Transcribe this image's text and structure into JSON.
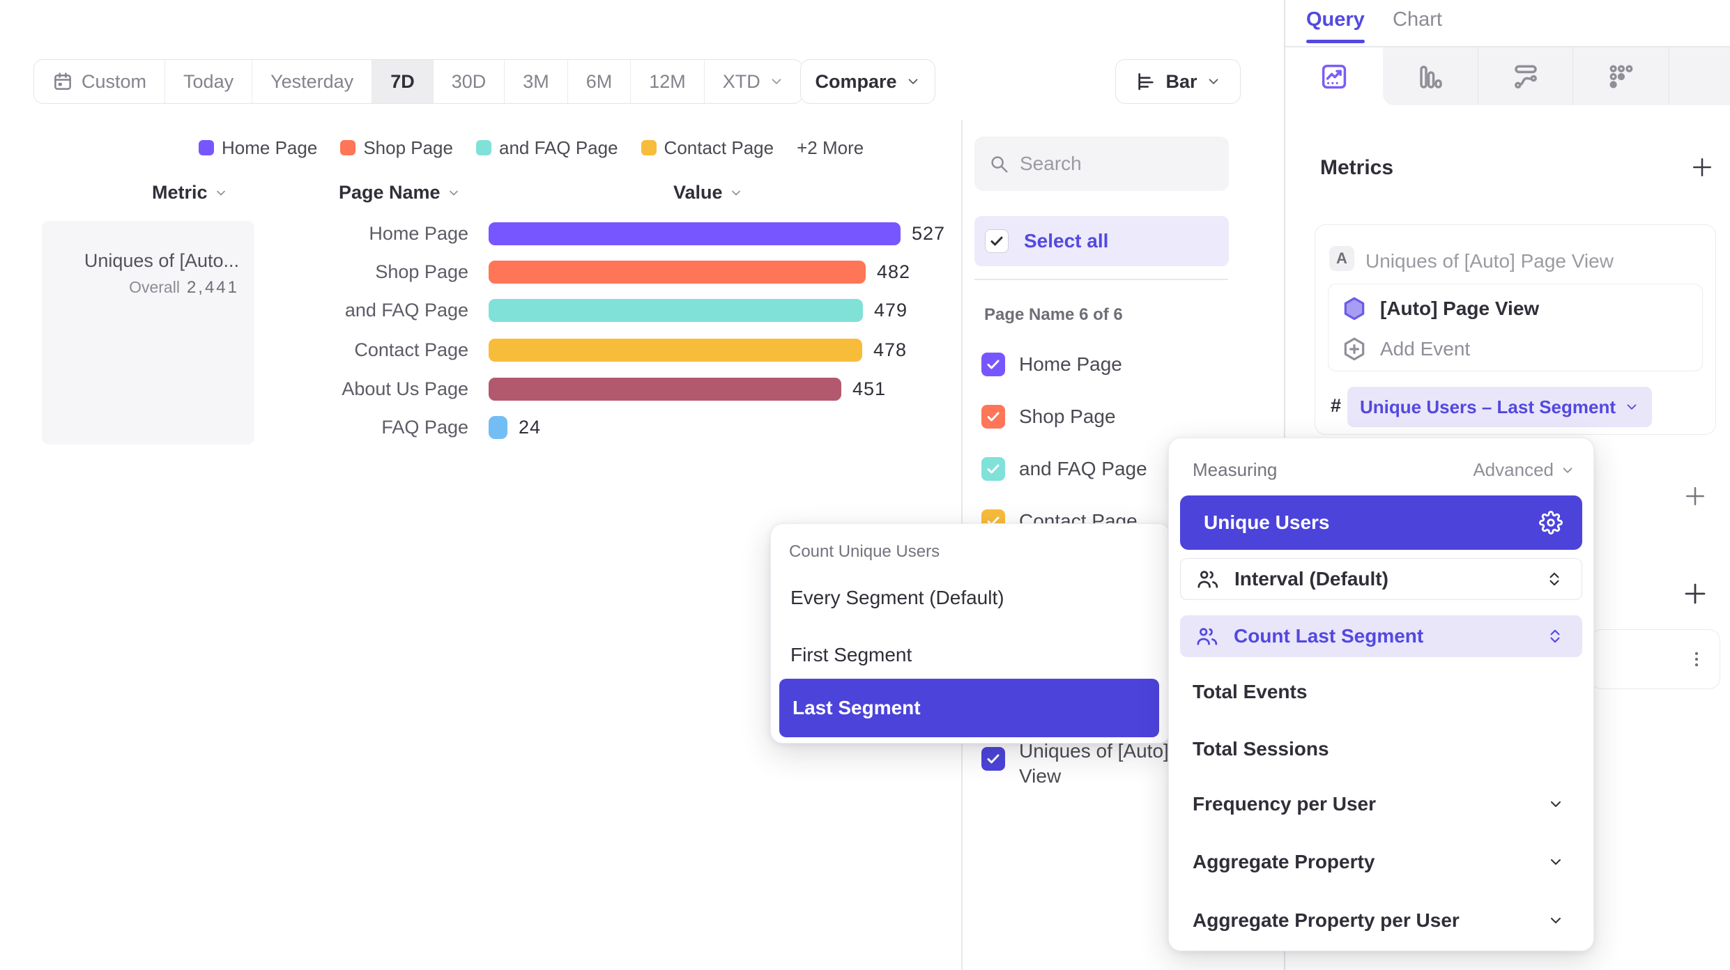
{
  "palette": {
    "indigo": "#4c43db",
    "indigo_text": "#5348df",
    "indigo_bg_light": "#e9e6fa",
    "select_all_bg": "#edeafb"
  },
  "toolbar": {
    "date_ranges": [
      "Custom",
      "Today",
      "Yesterday",
      "7D",
      "30D",
      "3M",
      "6M",
      "12M",
      "XTD"
    ],
    "active_range": "7D",
    "compare_label": "Compare",
    "chart_type_label": "Bar"
  },
  "legend": {
    "items": [
      {
        "label": "Home Page",
        "color": "#7856ff"
      },
      {
        "label": "Shop Page",
        "color": "#ff7557"
      },
      {
        "label": "and FAQ Page",
        "color": "#80e1d9"
      },
      {
        "label": "Contact Page",
        "color": "#f8bc3b"
      }
    ],
    "more_label": "+2 More"
  },
  "columns": {
    "metric": "Metric",
    "page_name": "Page Name",
    "value": "Value"
  },
  "metric_card": {
    "title": "Uniques of [Auto...",
    "overall_label": "Overall",
    "overall_value": "2,441"
  },
  "chart_data": {
    "type": "bar",
    "orientation": "horizontal",
    "metric": "Uniques of [Auto] Page View",
    "categories": [
      "Home Page",
      "Shop Page",
      "and FAQ Page",
      "Contact Page",
      "About Us Page",
      "FAQ Page"
    ],
    "values": [
      527,
      482,
      479,
      478,
      451,
      24
    ],
    "colors": [
      "#7856ff",
      "#ff7557",
      "#80e1d9",
      "#f8bc3b",
      "#b2596e",
      "#72bef4"
    ],
    "overall_total": 2441,
    "value_labels_shown": true,
    "axis_shown": false
  },
  "filter_panel": {
    "search_placeholder": "Search",
    "select_all_label": "Select all",
    "group_label": "Page Name 6 of 6",
    "items": [
      {
        "label": "Home Page",
        "color": "#7856ff",
        "checked": true
      },
      {
        "label": "Shop Page",
        "color": "#ff7557",
        "checked": true
      },
      {
        "label": "and FAQ Page",
        "color": "#80e1d9",
        "checked": true
      },
      {
        "label": "Contact Page",
        "color": "#f8bc3b",
        "checked": true
      }
    ],
    "event_item": {
      "label_lines": [
        "Uniques of [Auto] Page",
        "View"
      ],
      "color": "#4c43db",
      "checked": true
    }
  },
  "segment_popup": {
    "title": "Count Unique Users",
    "options": [
      "Every Segment (Default)",
      "First Segment",
      "Last Segment"
    ],
    "selected": "Last Segment"
  },
  "sidebar": {
    "tabs": [
      "Query",
      "Chart"
    ],
    "active_tab": "Query",
    "report_types": [
      {
        "name": "insights",
        "active": true
      },
      {
        "name": "funnel",
        "active": false
      },
      {
        "name": "flow",
        "active": false
      },
      {
        "name": "grid-dots",
        "active": false
      }
    ],
    "metrics_heading": "Metrics",
    "metric": {
      "badge": "A",
      "label": "Uniques of [Auto] Page View",
      "event_label": "[Auto] Page View",
      "add_event_label": "Add Event",
      "hash": "#",
      "measurement_pill": "Unique Users – Last Segment"
    }
  },
  "measuring_popup": {
    "title": "Measuring",
    "advanced_label": "Advanced",
    "selected_option": "Unique Users",
    "param_rows": [
      {
        "label": "Interval (Default)",
        "active": false
      },
      {
        "label": "Count Last Segment",
        "active": true
      }
    ],
    "options": [
      {
        "label": "Total Events",
        "expandable": false
      },
      {
        "label": "Total Sessions",
        "expandable": false
      },
      {
        "label": "Frequency per User",
        "expandable": true
      },
      {
        "label": "Aggregate Property",
        "expandable": true
      },
      {
        "label": "Aggregate Property per User",
        "expandable": true
      }
    ]
  }
}
